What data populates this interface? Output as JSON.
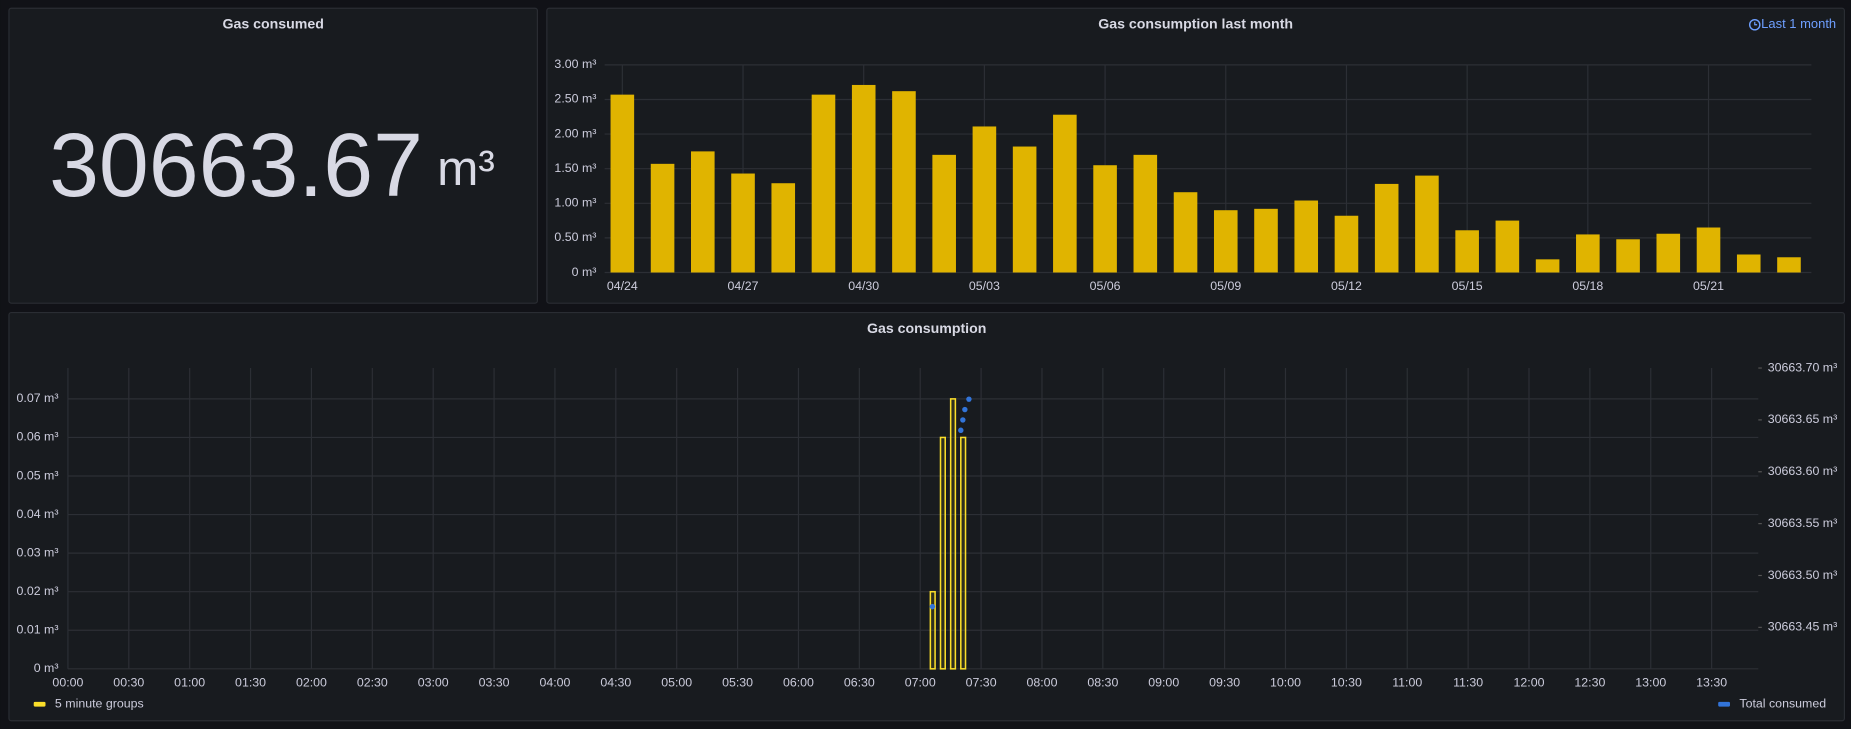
{
  "stat": {
    "title": "Gas consumed",
    "value": 30663.67,
    "unit": "m³"
  },
  "chart_data": [
    {
      "type": "bar",
      "title": "Gas consumption last month",
      "time_range": "Last 1 month",
      "color": "#e0b400",
      "grid": true,
      "categories": [
        "04/24",
        null,
        null,
        "04/27",
        null,
        null,
        "04/30",
        null,
        null,
        "05/03",
        null,
        null,
        "05/06",
        null,
        null,
        "05/09",
        null,
        null,
        "05/12",
        null,
        null,
        "05/15",
        null,
        null,
        "05/18",
        null,
        null,
        "05/21",
        null,
        null
      ],
      "values": [
        2.57,
        1.57,
        1.75,
        1.43,
        1.29,
        2.57,
        2.71,
        2.62,
        1.7,
        2.11,
        1.82,
        2.28,
        1.55,
        1.7,
        1.16,
        0.9,
        0.92,
        1.04,
        0.82,
        1.28,
        1.4,
        0.61,
        0.75,
        0.19,
        0.55,
        0.48,
        0.56,
        0.65,
        0.26,
        0.22
      ],
      "ylim": [
        0,
        3
      ],
      "yticks": [
        {
          "value": 0,
          "label": "0 m³"
        },
        {
          "value": 0.5,
          "label": "0.50 m³"
        },
        {
          "value": 1,
          "label": "1.00 m³"
        },
        {
          "value": 1.5,
          "label": "1.50 m³"
        },
        {
          "value": 2,
          "label": "2.00 m³"
        },
        {
          "value": 2.5,
          "label": "2.50 m³"
        },
        {
          "value": 3,
          "label": "3.00 m³"
        }
      ]
    },
    {
      "type": "timeseries",
      "title": "Gas consumption",
      "grid": true,
      "xlim": [
        0,
        833
      ],
      "xticks": [
        {
          "value": 0,
          "label": "00:00"
        },
        {
          "value": 30,
          "label": "00:30"
        },
        {
          "value": 60,
          "label": "01:00"
        },
        {
          "value": 90,
          "label": "01:30"
        },
        {
          "value": 120,
          "label": "02:00"
        },
        {
          "value": 150,
          "label": "02:30"
        },
        {
          "value": 180,
          "label": "03:00"
        },
        {
          "value": 210,
          "label": "03:30"
        },
        {
          "value": 240,
          "label": "04:00"
        },
        {
          "value": 270,
          "label": "04:30"
        },
        {
          "value": 300,
          "label": "05:00"
        },
        {
          "value": 330,
          "label": "05:30"
        },
        {
          "value": 360,
          "label": "06:00"
        },
        {
          "value": 390,
          "label": "06:30"
        },
        {
          "value": 420,
          "label": "07:00"
        },
        {
          "value": 450,
          "label": "07:30"
        },
        {
          "value": 480,
          "label": "08:00"
        },
        {
          "value": 510,
          "label": "08:30"
        },
        {
          "value": 540,
          "label": "09:00"
        },
        {
          "value": 570,
          "label": "09:30"
        },
        {
          "value": 600,
          "label": "10:00"
        },
        {
          "value": 630,
          "label": "10:30"
        },
        {
          "value": 660,
          "label": "11:00"
        },
        {
          "value": 690,
          "label": "11:30"
        },
        {
          "value": 720,
          "label": "12:00"
        },
        {
          "value": 750,
          "label": "12:30"
        },
        {
          "value": 780,
          "label": "13:00"
        },
        {
          "value": 810,
          "label": "13:30"
        }
      ],
      "ylim": [
        0,
        0.078
      ],
      "yticks": [
        {
          "value": 0,
          "label": "0 m³"
        },
        {
          "value": 0.01,
          "label": "0.01 m³"
        },
        {
          "value": 0.02,
          "label": "0.02 m³"
        },
        {
          "value": 0.03,
          "label": "0.03 m³"
        },
        {
          "value": 0.04,
          "label": "0.04 m³"
        },
        {
          "value": 0.05,
          "label": "0.05 m³"
        },
        {
          "value": 0.06,
          "label": "0.06 m³"
        },
        {
          "value": 0.07,
          "label": "0.07 m³"
        }
      ],
      "y2lim": [
        30663.41,
        30663.7
      ],
      "y2ticks": [
        {
          "value": 30663.45,
          "label": "30663.45 m³"
        },
        {
          "value": 30663.5,
          "label": "30663.50 m³"
        },
        {
          "value": 30663.55,
          "label": "30663.55 m³"
        },
        {
          "value": 30663.6,
          "label": "30663.60 m³"
        },
        {
          "value": 30663.65,
          "label": "30663.65 m³"
        },
        {
          "value": 30663.7,
          "label": "30663.70 m³"
        }
      ],
      "series": [
        {
          "name": "5 minute groups",
          "color": "#fade2a",
          "style": "bars",
          "x": [
            425,
            430,
            435,
            440
          ],
          "values": [
            0.02,
            0.06,
            0.07,
            0.06
          ]
        },
        {
          "name": "Total consumed",
          "color": "#3274d9",
          "style": "points",
          "axis": "y2",
          "x": [
            426,
            440,
            441,
            442,
            444
          ],
          "values": [
            30663.47,
            30663.64,
            30663.65,
            30663.66,
            30663.67
          ]
        }
      ]
    }
  ]
}
